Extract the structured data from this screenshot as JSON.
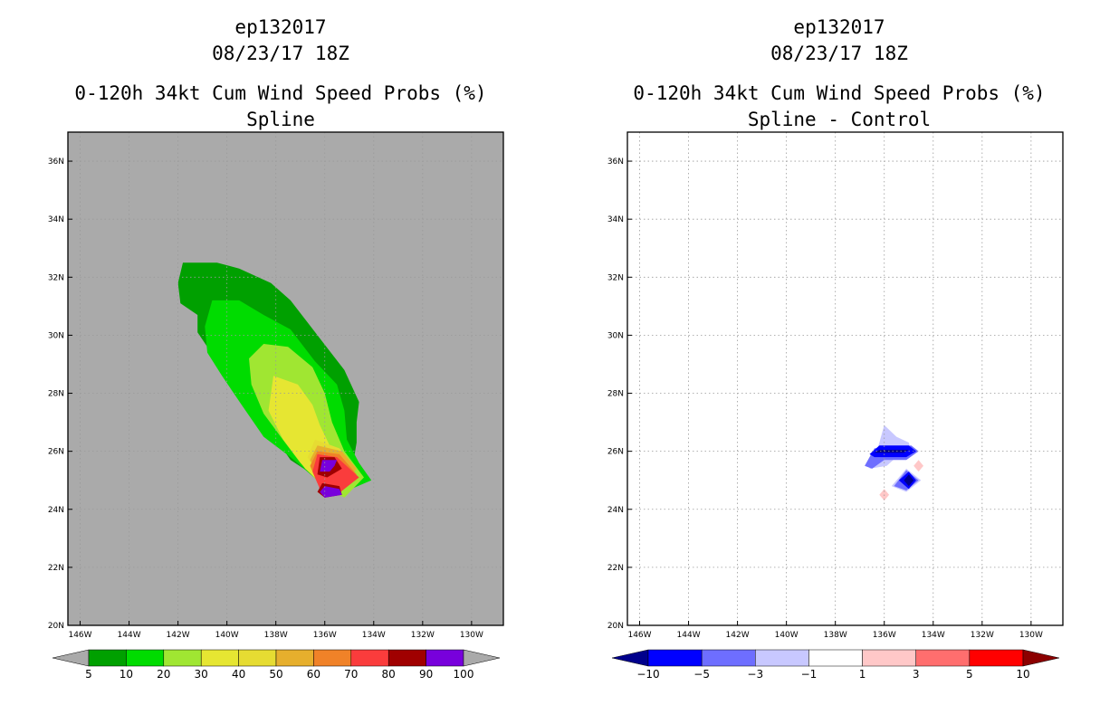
{
  "chart_data": [
    {
      "type": "contour-map",
      "title_lines": [
        "ep132017",
        "08/23/17 18Z",
        "0-120h 34kt Cum Wind Speed Probs (%)",
        "Spline"
      ],
      "xlabel": "",
      "ylabel": "",
      "x_ticks": [
        {
          "value": -146,
          "label": "146W"
        },
        {
          "value": -144,
          "label": "144W"
        },
        {
          "value": -142,
          "label": "142W"
        },
        {
          "value": -140,
          "label": "140W"
        },
        {
          "value": -138,
          "label": "138W"
        },
        {
          "value": -136,
          "label": "136W"
        },
        {
          "value": -134,
          "label": "134W"
        },
        {
          "value": -132,
          "label": "132W"
        },
        {
          "value": -130,
          "label": "130W"
        }
      ],
      "y_ticks": [
        {
          "value": 20,
          "label": "20N"
        },
        {
          "value": 22,
          "label": "22N"
        },
        {
          "value": 24,
          "label": "24N"
        },
        {
          "value": 26,
          "label": "26N"
        },
        {
          "value": 28,
          "label": "28N"
        },
        {
          "value": 30,
          "label": "30N"
        },
        {
          "value": 32,
          "label": "32N"
        },
        {
          "value": 34,
          "label": "34N"
        },
        {
          "value": 36,
          "label": "36N"
        }
      ],
      "xlim": [
        -146.5,
        -128.7
      ],
      "ylim": [
        20,
        37
      ],
      "background": "#aaaaaa",
      "grid": "dotted",
      "colorbar": {
        "levels": [
          "5",
          "10",
          "20",
          "30",
          "40",
          "50",
          "60",
          "70",
          "80",
          "90",
          "100"
        ],
        "colors": [
          "#00a000",
          "#00dc00",
          "#a0e632",
          "#e6e632",
          "#e6dc32",
          "#e6af2d",
          "#f08228",
          "#fa3c3c",
          "#a00000",
          "#7800dc"
        ],
        "under_color": "#aaaaaa",
        "over_color": "#aaaaaa"
      },
      "contours": [
        {
          "level": 5,
          "color": "#00a000",
          "points": [
            [
              -141.8,
              32.5
            ],
            [
              -140.4,
              32.5
            ],
            [
              -139.5,
              32.3
            ],
            [
              -138.2,
              31.8
            ],
            [
              -137.4,
              31.2
            ],
            [
              -136.3,
              30.0
            ],
            [
              -135.2,
              28.8
            ],
            [
              -134.6,
              27.7
            ],
            [
              -134.7,
              27.0
            ],
            [
              -134.7,
              26.3
            ],
            [
              -134.8,
              25.8
            ],
            [
              -134.1,
              25.0
            ],
            [
              -135.3,
              24.8
            ],
            [
              -136.5,
              25.2
            ],
            [
              -137.4,
              25.7
            ],
            [
              -138.3,
              26.8
            ],
            [
              -139.2,
              27.7
            ],
            [
              -140.0,
              28.6
            ],
            [
              -140.8,
              29.6
            ],
            [
              -141.2,
              30.1
            ],
            [
              -141.2,
              30.7
            ],
            [
              -141.9,
              31.1
            ],
            [
              -142.0,
              31.8
            ]
          ]
        },
        {
          "level": 10,
          "color": "#00dc00",
          "points": [
            [
              -140.6,
              31.2
            ],
            [
              -139.5,
              31.2
            ],
            [
              -138.5,
              30.7
            ],
            [
              -137.4,
              30.2
            ],
            [
              -136.4,
              29.1
            ],
            [
              -135.5,
              28.3
            ],
            [
              -135.2,
              27.4
            ],
            [
              -135.1,
              26.4
            ],
            [
              -134.6,
              25.6
            ],
            [
              -134.1,
              25.0
            ],
            [
              -135.2,
              24.6
            ],
            [
              -136.3,
              25.0
            ],
            [
              -137.4,
              25.8
            ],
            [
              -138.5,
              26.5
            ],
            [
              -139.4,
              27.6
            ],
            [
              -140.2,
              28.6
            ],
            [
              -140.8,
              29.4
            ],
            [
              -140.9,
              30.3
            ]
          ]
        },
        {
          "level": 20,
          "color": "#a0e632",
          "points": [
            [
              -138.5,
              29.7
            ],
            [
              -137.5,
              29.6
            ],
            [
              -136.5,
              28.9
            ],
            [
              -136.0,
              28.0
            ],
            [
              -135.7,
              27.0
            ],
            [
              -135.2,
              26.0
            ],
            [
              -134.4,
              25.1
            ],
            [
              -135.2,
              24.4
            ],
            [
              -136.1,
              24.8
            ],
            [
              -137.0,
              25.6
            ],
            [
              -137.8,
              26.5
            ],
            [
              -138.5,
              27.3
            ],
            [
              -139.0,
              28.3
            ],
            [
              -139.1,
              29.2
            ]
          ]
        },
        {
          "level": 30,
          "color": "#e6e632",
          "points": [
            [
              -138.1,
              28.6
            ],
            [
              -137.1,
              28.3
            ],
            [
              -136.5,
              27.6
            ],
            [
              -136.2,
              26.9
            ],
            [
              -135.8,
              26.2
            ],
            [
              -135.2,
              25.4
            ],
            [
              -135.9,
              24.7
            ],
            [
              -136.8,
              25.4
            ],
            [
              -137.7,
              26.4
            ],
            [
              -138.3,
              27.4
            ]
          ]
        },
        {
          "level": 40,
          "color": "#e6dc32",
          "points": [
            [
              -136.4,
              26.4
            ],
            [
              -135.4,
              26.1
            ],
            [
              -134.8,
              25.5
            ],
            [
              -135.4,
              24.9
            ],
            [
              -136.3,
              25.2
            ],
            [
              -136.7,
              25.8
            ]
          ]
        },
        {
          "level": 50,
          "color": "#e6af2d",
          "points": [
            [
              -136.3,
              26.2
            ],
            [
              -135.3,
              26.0
            ],
            [
              -134.7,
              25.4
            ],
            [
              -135.3,
              24.8
            ],
            [
              -136.2,
              25.1
            ],
            [
              -136.6,
              25.7
            ]
          ]
        },
        {
          "level": 60,
          "color": "#f08228",
          "points": [
            [
              -136.3,
              26.0
            ],
            [
              -135.4,
              25.9
            ],
            [
              -134.7,
              25.2
            ],
            [
              -135.4,
              24.6
            ],
            [
              -136.3,
              24.9
            ],
            [
              -136.6,
              25.5
            ]
          ]
        },
        {
          "level": 70,
          "color": "#fa3c3c",
          "points": [
            [
              -136.3,
              25.9
            ],
            [
              -135.5,
              25.8
            ],
            [
              -134.6,
              25.1
            ],
            [
              -135.5,
              24.5
            ],
            [
              -136.2,
              24.7
            ],
            [
              -136.5,
              25.3
            ]
          ]
        },
        {
          "level": 80,
          "color": "#a00000",
          "points": [
            [
              -136.2,
              25.8
            ],
            [
              -135.6,
              25.8
            ],
            [
              -135.3,
              25.4
            ],
            [
              -135.9,
              25.1
            ],
            [
              -136.3,
              25.2
            ]
          ]
        },
        {
          "level": 80,
          "color": "#a00000",
          "points": [
            [
              -136.1,
              24.9
            ],
            [
              -135.4,
              24.8
            ],
            [
              -135.3,
              24.5
            ],
            [
              -136.0,
              24.4
            ],
            [
              -136.3,
              24.6
            ]
          ]
        },
        {
          "level": 90,
          "color": "#7800dc",
          "points": [
            [
              -136.1,
              25.7
            ],
            [
              -135.5,
              25.7
            ],
            [
              -135.6,
              25.5
            ],
            [
              -135.8,
              25.3
            ],
            [
              -136.2,
              25.3
            ]
          ]
        },
        {
          "level": 90,
          "color": "#7800dc",
          "points": [
            [
              -136.0,
              24.8
            ],
            [
              -135.4,
              24.7
            ],
            [
              -135.3,
              24.5
            ],
            [
              -136.0,
              24.4
            ],
            [
              -136.2,
              24.6
            ]
          ]
        }
      ]
    },
    {
      "type": "contour-map",
      "title_lines": [
        "ep132017",
        "08/23/17 18Z",
        "0-120h 34kt Cum Wind Speed Probs (%)",
        "Spline - Control"
      ],
      "xlabel": "",
      "ylabel": "",
      "x_ticks": [
        {
          "value": -146,
          "label": "146W"
        },
        {
          "value": -144,
          "label": "144W"
        },
        {
          "value": -142,
          "label": "142W"
        },
        {
          "value": -140,
          "label": "140W"
        },
        {
          "value": -138,
          "label": "138W"
        },
        {
          "value": -136,
          "label": "136W"
        },
        {
          "value": -134,
          "label": "134W"
        },
        {
          "value": -132,
          "label": "132W"
        },
        {
          "value": -130,
          "label": "130W"
        }
      ],
      "y_ticks": [
        {
          "value": 20,
          "label": "20N"
        },
        {
          "value": 22,
          "label": "22N"
        },
        {
          "value": 24,
          "label": "24N"
        },
        {
          "value": 26,
          "label": "26N"
        },
        {
          "value": 28,
          "label": "28N"
        },
        {
          "value": 30,
          "label": "30N"
        },
        {
          "value": 32,
          "label": "32N"
        },
        {
          "value": 34,
          "label": "34N"
        },
        {
          "value": 36,
          "label": "36N"
        }
      ],
      "xlim": [
        -146.5,
        -128.7
      ],
      "ylim": [
        20,
        37
      ],
      "background": "#ffffff",
      "grid": "dotted",
      "colorbar": {
        "levels": [
          "-10",
          "-5",
          "-3",
          "-1",
          "1",
          "3",
          "5",
          "10"
        ],
        "colors": [
          "#0000ff",
          "#6e6eff",
          "#c8c8ff",
          "#ffffff",
          "#ffc8c8",
          "#ff6e6e",
          "#ff0000"
        ],
        "under_color": "#00008c",
        "over_color": "#8c0000"
      },
      "contours": [
        {
          "level": -1,
          "color": "#c8c8ff",
          "points": [
            [
              -136.0,
              26.9
            ],
            [
              -135.5,
              26.5
            ],
            [
              -135.0,
              26.3
            ],
            [
              -134.9,
              26.0
            ],
            [
              -135.5,
              25.8
            ],
            [
              -135.9,
              25.5
            ],
            [
              -136.6,
              25.4
            ],
            [
              -136.3,
              26.0
            ]
          ]
        },
        {
          "level": -1,
          "color": "#c8c8ff",
          "points": [
            [
              -135.1,
              25.4
            ],
            [
              -134.5,
              25.0
            ],
            [
              -135.1,
              24.6
            ],
            [
              -135.7,
              24.8
            ]
          ]
        },
        {
          "level": -3,
          "color": "#6e6eff",
          "points": [
            [
              -136.4,
              26.1
            ],
            [
              -134.9,
              26.2
            ],
            [
              -134.6,
              26.0
            ],
            [
              -135.1,
              25.7
            ],
            [
              -136.0,
              25.7
            ],
            [
              -136.5,
              25.4
            ],
            [
              -136.8,
              25.5
            ]
          ]
        },
        {
          "level": -3,
          "color": "#6e6eff",
          "points": [
            [
              -135.1,
              25.35
            ],
            [
              -134.6,
              25.0
            ],
            [
              -135.1,
              24.65
            ],
            [
              -135.6,
              24.8
            ]
          ]
        },
        {
          "level": -5,
          "color": "#0000ff",
          "points": [
            [
              -136.2,
              26.2
            ],
            [
              -135.0,
              26.2
            ],
            [
              -134.7,
              26.0
            ],
            [
              -135.1,
              25.8
            ],
            [
              -136.4,
              25.8
            ],
            [
              -136.6,
              25.9
            ]
          ]
        },
        {
          "level": -5,
          "color": "#0000ff",
          "points": [
            [
              -135.0,
              25.3
            ],
            [
              -134.7,
              25.0
            ],
            [
              -135.0,
              24.7
            ],
            [
              -135.4,
              25.0
            ]
          ]
        },
        {
          "level": -10,
          "color": "#00008c",
          "points": [
            [
              -136.2,
              26.05
            ],
            [
              -135.0,
              26.05
            ],
            [
              -135.2,
              25.95
            ],
            [
              -136.4,
              25.95
            ]
          ]
        },
        {
          "level": -10,
          "color": "#00008c",
          "points": [
            [
              -135.0,
              25.2
            ],
            [
              -134.8,
              25.0
            ],
            [
              -135.0,
              24.8
            ],
            [
              -135.2,
              25.0
            ]
          ]
        },
        {
          "level": 1,
          "color": "#ffc8c8",
          "points": [
            [
              -134.6,
              25.7
            ],
            [
              -134.4,
              25.5
            ],
            [
              -134.6,
              25.3
            ],
            [
              -134.8,
              25.5
            ]
          ]
        },
        {
          "level": 1,
          "color": "#ffc8c8",
          "points": [
            [
              -136.0,
              24.7
            ],
            [
              -135.8,
              24.5
            ],
            [
              -136.0,
              24.3
            ],
            [
              -136.2,
              24.5
            ]
          ]
        }
      ]
    }
  ]
}
